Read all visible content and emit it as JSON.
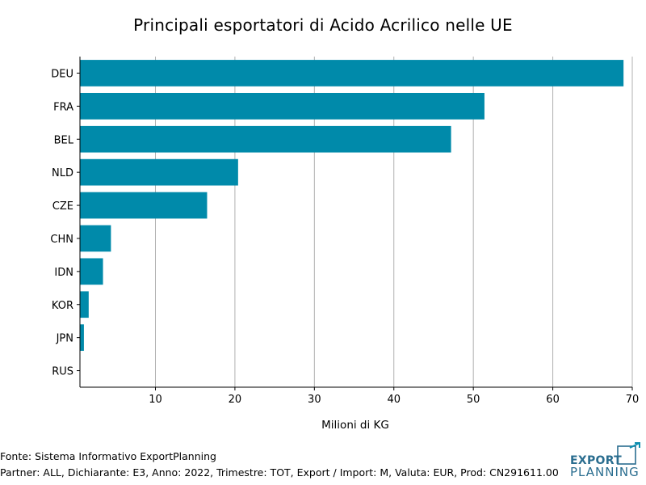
{
  "colors": {
    "bar": "#008aaa",
    "grid": "#b0b0b0",
    "axis": "#000000",
    "logo": "#2a6d8f",
    "logo_accent": "#0e8fb0"
  },
  "footer": {
    "source": "Fonte: Sistema Informativo ExportPlanning",
    "partner": "Partner: ALL, Dichiarante: E3, Anno: 2022, Trimestre: TOT, Export / Import: M, Valuta: EUR, Prod: CN291611.00"
  },
  "logo": {
    "line1": "EXPORT",
    "line2": "PLANNING"
  },
  "chart_data": {
    "type": "bar",
    "orientation": "horizontal",
    "title": "Principali esportatori di Acido Acrilico nelle UE",
    "xlabel": "Milioni di KG",
    "ylabel": "",
    "categories": [
      "DEU",
      "FRA",
      "BEL",
      "NLD",
      "CZE",
      "CHN",
      "IDN",
      "KOR",
      "JPN",
      "RUS"
    ],
    "values": [
      68.9,
      51.4,
      47.2,
      20.4,
      16.5,
      4.4,
      3.4,
      1.6,
      1.0,
      0.5
    ],
    "xlim": [
      0.5,
      70
    ],
    "xticks": [
      10,
      20,
      30,
      40,
      50,
      60,
      70
    ],
    "grid": "x",
    "legend": "none"
  }
}
